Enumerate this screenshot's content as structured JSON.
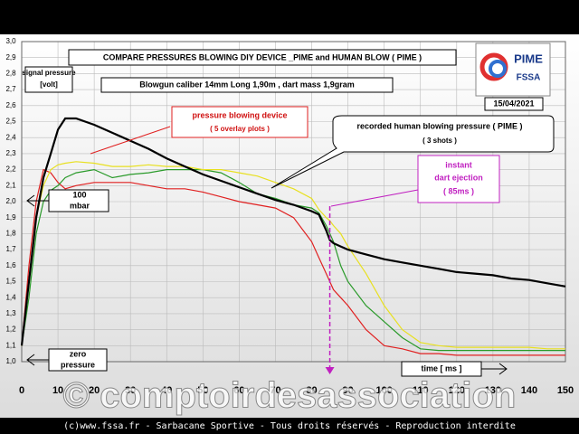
{
  "chart_data": {
    "type": "line",
    "title": "COMPARE PRESSURES  BLOWING DIY DEVICE _PIME and  HUMAN BLOW  ( PIME )",
    "subtitle": "Blowgun caliber 14mm Long 1,90m   ,  dart mass 1,9gram",
    "y_label": [
      "signal pressure",
      "[volt]"
    ],
    "date": "15/04/2021",
    "logo": [
      "PIME",
      "FSSA"
    ],
    "annotations": {
      "device": [
        "pressure  blowing device",
        "( 5 overlay plots )"
      ],
      "human": [
        "recorded human blowing pressure ( PIME )",
        "( 3 shots )"
      ],
      "ejection": [
        "instant",
        "dart ejection",
        "( 85ms )"
      ],
      "mbar": [
        "100",
        "mbar"
      ],
      "zero": [
        "zero",
        "pressure"
      ],
      "time": "time [ ms ]"
    },
    "watermark": "© comptoirdesassociation",
    "footer": "(c)www.fssa.fr - Sarbacane Sportive - Tous droits réservés - Reproduction interdite",
    "x": [
      0,
      2,
      4,
      6,
      8,
      10,
      12,
      15,
      20,
      25,
      30,
      35,
      40,
      45,
      50,
      55,
      60,
      65,
      70,
      75,
      80,
      82,
      84,
      85,
      86,
      88,
      90,
      95,
      100,
      105,
      110,
      115,
      120,
      125,
      130,
      135,
      140,
      145,
      150
    ],
    "series": [
      {
        "color": "#e02020",
        "values": [
          1.1,
          1.6,
          2.0,
          2.2,
          2.18,
          2.12,
          2.08,
          2.1,
          2.12,
          2.12,
          2.12,
          2.1,
          2.08,
          2.08,
          2.06,
          2.03,
          2.0,
          1.98,
          1.96,
          1.9,
          1.75,
          1.65,
          1.55,
          1.5,
          1.45,
          1.4,
          1.35,
          1.2,
          1.1,
          1.08,
          1.05,
          1.05,
          1.04,
          1.04,
          1.04,
          1.04,
          1.04,
          1.04,
          1.04
        ]
      },
      {
        "color": "#2a9a2a",
        "values": [
          1.1,
          1.4,
          1.8,
          2.0,
          2.07,
          2.1,
          2.15,
          2.18,
          2.2,
          2.15,
          2.17,
          2.18,
          2.2,
          2.2,
          2.2,
          2.18,
          2.12,
          2.05,
          2.02,
          1.98,
          1.96,
          1.93,
          1.85,
          1.8,
          1.75,
          1.6,
          1.5,
          1.35,
          1.25,
          1.15,
          1.08,
          1.07,
          1.07,
          1.07,
          1.07,
          1.07,
          1.07,
          1.07,
          1.07
        ]
      },
      {
        "color": "#e8e020",
        "values": [
          1.1,
          1.5,
          1.9,
          2.1,
          2.2,
          2.23,
          2.24,
          2.25,
          2.24,
          2.22,
          2.22,
          2.23,
          2.22,
          2.22,
          2.2,
          2.2,
          2.18,
          2.16,
          2.12,
          2.08,
          2.02,
          1.95,
          1.9,
          1.88,
          1.85,
          1.8,
          1.72,
          1.55,
          1.35,
          1.2,
          1.12,
          1.1,
          1.09,
          1.09,
          1.09,
          1.09,
          1.09,
          1.08,
          1.08
        ]
      },
      {
        "color": "#000000",
        "values": [
          1.1,
          1.5,
          1.9,
          2.15,
          2.3,
          2.45,
          2.52,
          2.52,
          2.48,
          2.43,
          2.38,
          2.33,
          2.27,
          2.22,
          2.17,
          2.13,
          2.09,
          2.05,
          2.01,
          1.98,
          1.94,
          1.92,
          1.82,
          1.76,
          1.74,
          1.72,
          1.7,
          1.67,
          1.64,
          1.62,
          1.6,
          1.58,
          1.56,
          1.55,
          1.54,
          1.52,
          1.51,
          1.49,
          1.47
        ]
      }
    ],
    "ejection_x": 85,
    "xlim": [
      0,
      150
    ],
    "xticks": [
      0,
      10,
      20,
      30,
      40,
      50,
      60,
      70,
      80,
      90,
      100,
      110,
      120,
      130,
      140,
      150
    ],
    "ylim": [
      1.0,
      3.0
    ],
    "yticks": [
      {
        "value": 1.0,
        "label": "1,0"
      },
      {
        "value": 1.1,
        "label": "1,1"
      },
      {
        "value": 1.2,
        "label": "1,2"
      },
      {
        "value": 1.3,
        "label": "1,3"
      },
      {
        "value": 1.4,
        "label": "1,4"
      },
      {
        "value": 1.5,
        "label": "1,5"
      },
      {
        "value": 1.6,
        "label": "1,6"
      },
      {
        "value": 1.7,
        "label": "1,7"
      },
      {
        "value": 1.8,
        "label": "1,8"
      },
      {
        "value": 1.9,
        "label": "1,9"
      },
      {
        "value": 2.0,
        "label": "2,0"
      },
      {
        "value": 2.1,
        "label": "2,1"
      },
      {
        "value": 2.2,
        "label": "2,2"
      },
      {
        "value": 2.3,
        "label": "2,3"
      },
      {
        "value": 2.4,
        "label": "2,4"
      },
      {
        "value": 2.5,
        "label": "2,5"
      },
      {
        "value": 2.6,
        "label": "2,6"
      },
      {
        "value": 2.7,
        "label": "2,7"
      },
      {
        "value": 2.8,
        "label": "2,8"
      },
      {
        "value": 2.9,
        "label": "2,9"
      },
      {
        "value": 3.0,
        "label": "3,0"
      }
    ],
    "grid": true
  }
}
